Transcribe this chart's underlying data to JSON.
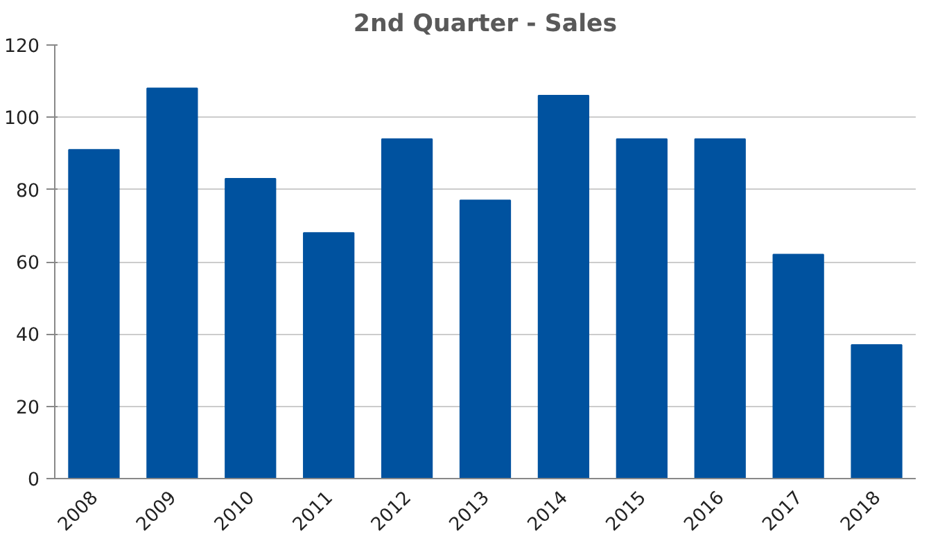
{
  "chart_data": {
    "type": "bar",
    "title": "2nd Quarter - Sales",
    "categories": [
      "2008",
      "2009",
      "2010",
      "2011",
      "2012",
      "2013",
      "2014",
      "2015",
      "2016",
      "2017",
      "2018"
    ],
    "values": [
      91,
      108,
      83,
      68,
      94,
      77,
      106,
      94,
      94,
      62,
      37
    ],
    "color": "#00529f",
    "ylim": [
      0,
      120
    ],
    "yticks": [
      0,
      20,
      40,
      60,
      80,
      100,
      120
    ],
    "grid": "y"
  }
}
